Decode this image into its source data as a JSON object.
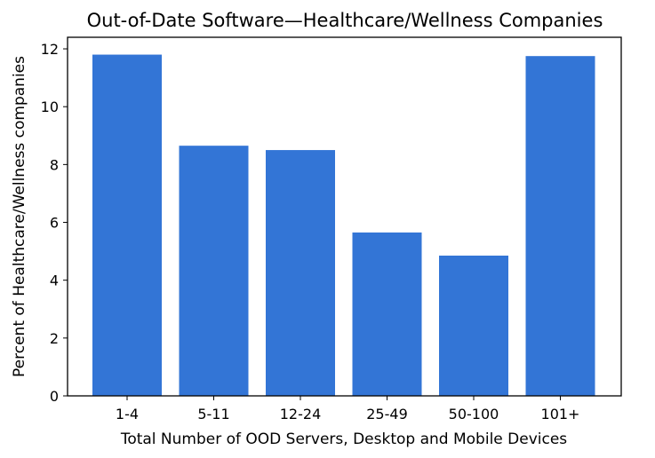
{
  "chart_data": {
    "type": "bar",
    "title": "Out-of-Date Software—Healthcare/Wellness Companies",
    "xlabel": "Total Number of OOD Servers, Desktop and Mobile Devices",
    "ylabel": "Percent of Healthcare/Wellness companies",
    "categories": [
      "1-4",
      "5-11",
      "12-24",
      "25-49",
      "50-100",
      "101+"
    ],
    "values": [
      11.8,
      8.65,
      8.5,
      5.65,
      4.85,
      11.75
    ],
    "ylim": [
      0,
      12.4
    ],
    "yticks": [
      0,
      2,
      4,
      6,
      8,
      10,
      12
    ],
    "bar_color": "#3375d6",
    "grid": false,
    "legend": "none"
  }
}
